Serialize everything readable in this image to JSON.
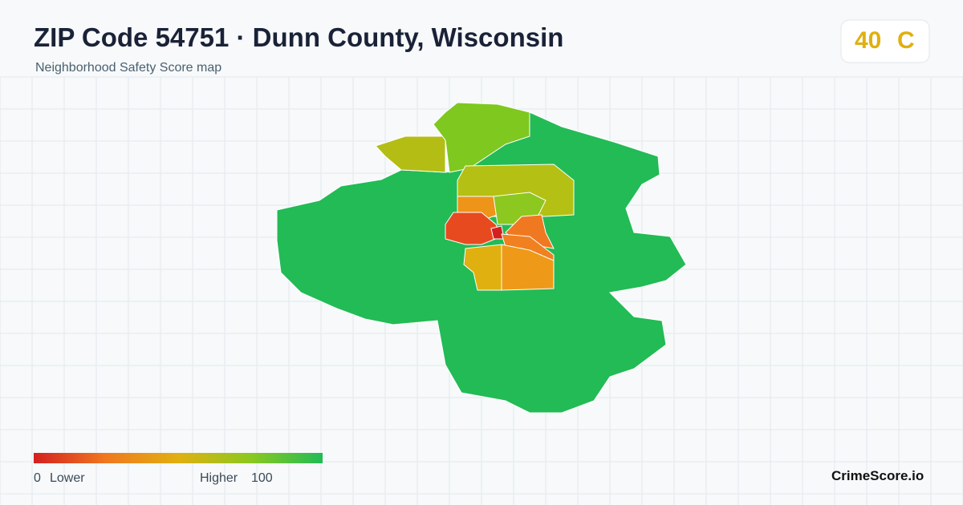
{
  "header": {
    "title": "ZIP Code 54751 · Dunn County, Wisconsin",
    "subtitle": "Neighborhood Safety Score map"
  },
  "badge": {
    "score": 40,
    "grade": "C"
  },
  "legend": {
    "min": 0,
    "min_label": "Lower",
    "max_label": "Higher",
    "max": 100
  },
  "brand": "CrimeScore.io"
}
